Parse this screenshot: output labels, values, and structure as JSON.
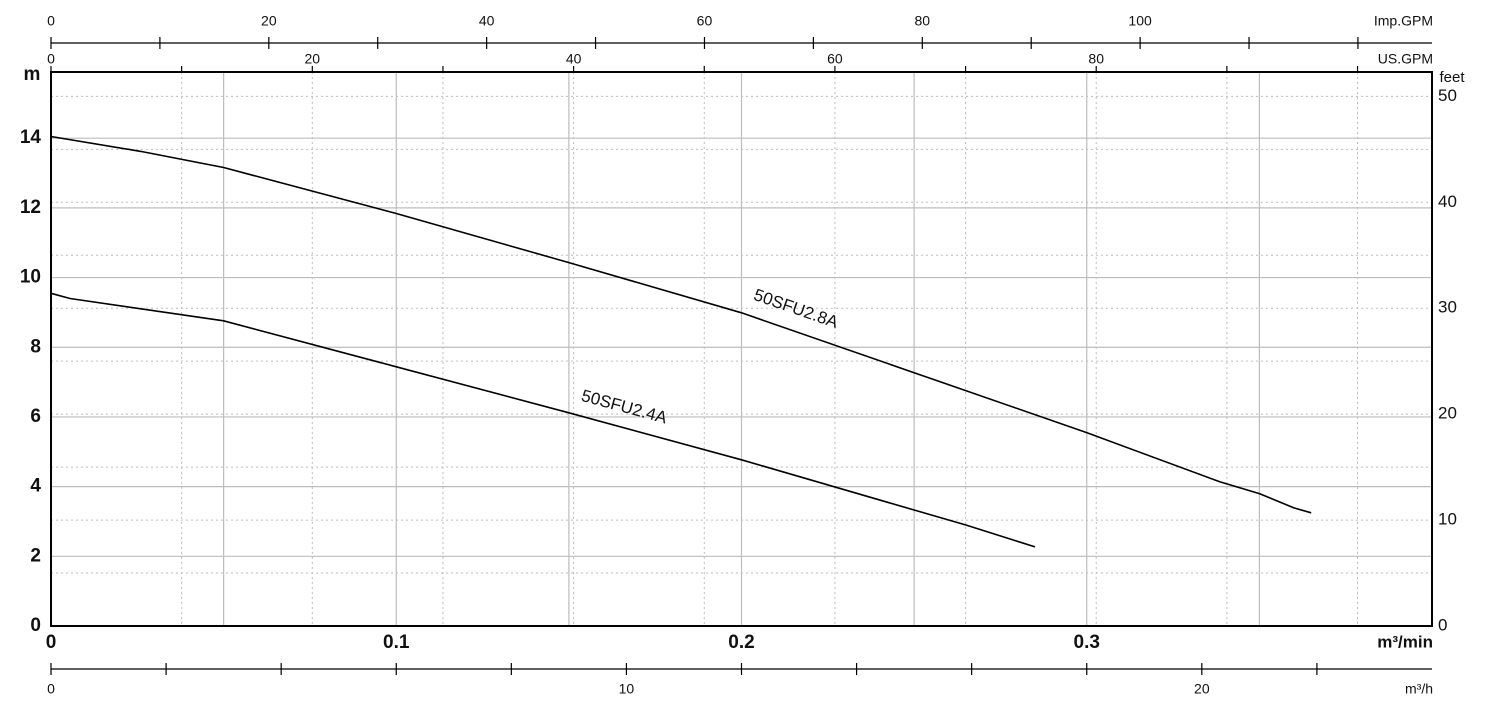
{
  "chart_data": {
    "type": "line",
    "x_axis_label": "m³/min",
    "y_axis_label": "m",
    "y2_axis_label": "feet",
    "xlim": [
      0,
      0.4
    ],
    "xticks": [
      0,
      0.1,
      0.2,
      0.3
    ],
    "x_minor_ticks": [
      0.05,
      0.15,
      0.25,
      0.35
    ],
    "ylim": [
      0,
      15.9
    ],
    "yticks": [
      0,
      2,
      4,
      6,
      8,
      10,
      12,
      14
    ],
    "y2lim": [
      0,
      52.3
    ],
    "y2ticks": [
      0,
      10,
      20,
      30,
      40,
      50
    ],
    "y2_minor_ticks": [
      5,
      15,
      25,
      35,
      45
    ],
    "grid": true,
    "extra_x_axes": [
      {
        "label": "Imp.GPM",
        "position": "top",
        "lim": [
          0,
          126.8
        ],
        "ticks": [
          0,
          20,
          40,
          60,
          80,
          100
        ],
        "minor_ticks": [
          10,
          30,
          50,
          70,
          90,
          110,
          120
        ]
      },
      {
        "label": "US.GPM",
        "position": "top",
        "lim": [
          0,
          105.7
        ],
        "ticks": [
          0,
          20,
          40,
          60,
          80
        ],
        "minor_ticks": [
          10,
          30,
          50,
          70,
          90,
          100
        ]
      },
      {
        "label": "m³/h",
        "position": "bottom",
        "lim": [
          0,
          24
        ],
        "ticks": [
          0,
          10,
          20
        ],
        "minor_ticks": [
          2,
          4,
          6,
          8,
          12,
          14,
          16,
          18,
          22
        ]
      }
    ],
    "series": [
      {
        "name": "50SFU2.8A",
        "color": "#000000",
        "x": [
          0,
          0.026,
          0.05,
          0.1,
          0.15,
          0.2,
          0.25,
          0.3,
          0.3385,
          0.35,
          0.36,
          0.365
        ],
        "values": [
          14.05,
          13.62,
          13.16,
          11.84,
          10.43,
          8.99,
          7.27,
          5.55,
          4.14,
          3.8,
          3.39,
          3.25
        ]
      },
      {
        "name": "50SFU2.4A",
        "color": "#000000",
        "x": [
          0,
          0.0055,
          0.05,
          0.1,
          0.15,
          0.2,
          0.25,
          0.265,
          0.285
        ],
        "values": [
          9.55,
          9.4,
          8.76,
          7.44,
          6.12,
          4.77,
          3.33,
          2.9,
          2.27
        ]
      }
    ]
  }
}
